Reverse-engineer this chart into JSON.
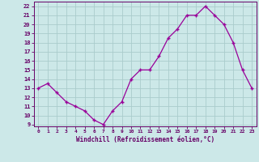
{
  "x": [
    0,
    1,
    2,
    3,
    4,
    5,
    6,
    7,
    8,
    9,
    10,
    11,
    12,
    13,
    14,
    15,
    16,
    17,
    18,
    19,
    20,
    21,
    22,
    23
  ],
  "y": [
    13,
    13.5,
    12.5,
    11.5,
    11,
    10.5,
    9.5,
    9,
    10.5,
    11.5,
    14,
    15,
    15,
    16.5,
    18.5,
    19.5,
    21,
    21,
    22,
    21,
    20,
    18,
    15,
    13
  ],
  "line_color": "#990099",
  "marker": "+",
  "bg_color": "#cce8e8",
  "grid_color": "#aacccc",
  "xlabel": "Windchill (Refroidissement éolien,°C)",
  "ylabel_ticks": [
    9,
    10,
    11,
    12,
    13,
    14,
    15,
    16,
    17,
    18,
    19,
    20,
    21,
    22
  ],
  "xlim": [
    -0.5,
    23.5
  ],
  "ylim": [
    8.8,
    22.5
  ],
  "tick_color": "#660066",
  "axis_color": "#660066",
  "xlabel_color": "#660066"
}
